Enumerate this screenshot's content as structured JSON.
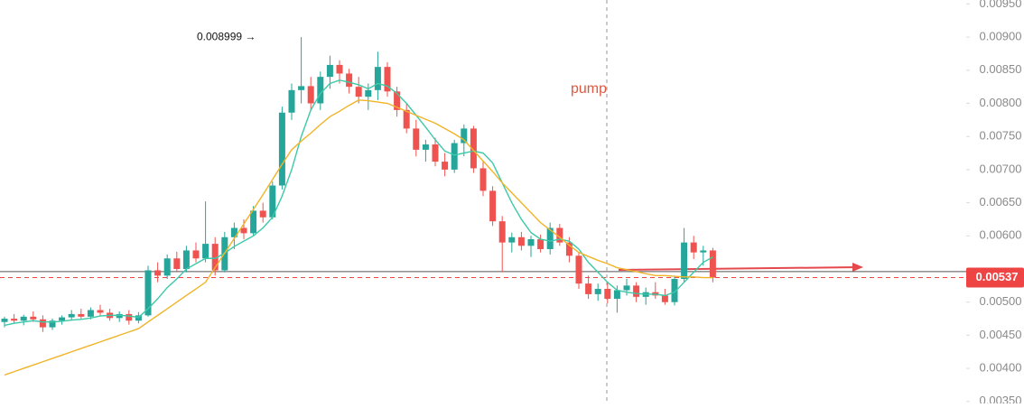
{
  "chart_data": {
    "type": "candlestick",
    "ylim": [
      0.00347,
      0.00956
    ],
    "yticks": [
      {
        "value": 0.0095,
        "label": "0.00950"
      },
      {
        "value": 0.009,
        "label": "0.00900"
      },
      {
        "value": 0.0085,
        "label": "0.00850"
      },
      {
        "value": 0.008,
        "label": "0.00800"
      },
      {
        "value": 0.0075,
        "label": "0.00750"
      },
      {
        "value": 0.007,
        "label": "0.00700"
      },
      {
        "value": 0.0065,
        "label": "0.00650"
      },
      {
        "value": 0.006,
        "label": "0.00600"
      },
      {
        "value": 0.005,
        "label": "0.00500"
      },
      {
        "value": 0.0045,
        "label": "0.00450"
      },
      {
        "value": 0.004,
        "label": "0.00400"
      },
      {
        "value": 0.0035,
        "label": "0.00350"
      }
    ],
    "up_color": "#26a69a",
    "down_color": "#ef5350",
    "open": [
      0.0047,
      0.00475,
      0.00472,
      0.00478,
      0.00474,
      0.00462,
      0.00472,
      0.00477,
      0.00482,
      0.00478,
      0.00488,
      0.00484,
      0.00476,
      0.00482,
      0.00472,
      0.0048,
      0.00548,
      0.0054,
      0.00566,
      0.0055,
      0.00578,
      0.00566,
      0.00588,
      0.00548,
      0.00598,
      0.00612,
      0.00604,
      0.00638,
      0.00628,
      0.00676,
      0.00786,
      0.0082,
      0.00826,
      0.008,
      0.0084,
      0.00858,
      0.00845,
      0.00825,
      0.0081,
      0.0082,
      0.00855,
      0.00818,
      0.0079,
      0.00762,
      0.0073,
      0.00738,
      0.00712,
      0.007,
      0.0074,
      0.00762,
      0.00702,
      0.00668,
      0.00622,
      0.0059,
      0.00598,
      0.00585,
      0.00595,
      0.0058,
      0.00612,
      0.0059,
      0.0057,
      0.00528,
      0.00512,
      0.0052,
      0.00505,
      0.00518,
      0.00525,
      0.00508,
      0.00515,
      0.0051,
      0.005,
      0.00535,
      0.0059,
      0.00575,
      0.00578
    ],
    "high": [
      0.00478,
      0.00482,
      0.00481,
      0.00486,
      0.0048,
      0.00475,
      0.0048,
      0.00488,
      0.0049,
      0.00492,
      0.00496,
      0.0049,
      0.00486,
      0.00488,
      0.00485,
      0.00555,
      0.0056,
      0.00572,
      0.00576,
      0.00585,
      0.0059,
      0.00652,
      0.00598,
      0.00606,
      0.0062,
      0.00625,
      0.00645,
      0.0065,
      0.00682,
      0.00795,
      0.0083,
      0.008999,
      0.0084,
      0.00848,
      0.00872,
      0.00865,
      0.00852,
      0.0084,
      0.0083,
      0.00878,
      0.00862,
      0.00825,
      0.008,
      0.00775,
      0.00745,
      0.00748,
      0.00725,
      0.00745,
      0.00768,
      0.00766,
      0.00712,
      0.00675,
      0.0063,
      0.00605,
      0.00606,
      0.006,
      0.00602,
      0.0062,
      0.00618,
      0.00598,
      0.00575,
      0.0054,
      0.00528,
      0.0053,
      0.00525,
      0.00535,
      0.0053,
      0.00522,
      0.0053,
      0.0052,
      0.0054,
      0.00612,
      0.006,
      0.00585,
      0.00582
    ],
    "low": [
      0.00462,
      0.00468,
      0.00465,
      0.0047,
      0.00455,
      0.00458,
      0.00466,
      0.00472,
      0.00475,
      0.00474,
      0.0048,
      0.00472,
      0.0047,
      0.00466,
      0.00468,
      0.00478,
      0.0053,
      0.00535,
      0.00545,
      0.00545,
      0.0056,
      0.0056,
      0.0054,
      0.00545,
      0.0058,
      0.00595,
      0.006,
      0.0062,
      0.00625,
      0.0067,
      0.00775,
      0.008,
      0.0079,
      0.0079,
      0.00822,
      0.0083,
      0.00815,
      0.008,
      0.0079,
      0.00805,
      0.0081,
      0.0078,
      0.00755,
      0.0072,
      0.00712,
      0.00705,
      0.0069,
      0.00695,
      0.0072,
      0.00695,
      0.0066,
      0.00615,
      0.00545,
      0.00575,
      0.00578,
      0.00568,
      0.00575,
      0.00572,
      0.00585,
      0.0056,
      0.0052,
      0.00505,
      0.00502,
      0.00498,
      0.00484,
      0.0051,
      0.005,
      0.00496,
      0.00505,
      0.00496,
      0.00495,
      0.0053,
      0.00565,
      0.00555,
      0.0053
    ],
    "close": [
      0.00475,
      0.00472,
      0.00478,
      0.00474,
      0.00462,
      0.00472,
      0.00477,
      0.00482,
      0.00478,
      0.00488,
      0.00484,
      0.00476,
      0.00482,
      0.00472,
      0.0048,
      0.00548,
      0.0054,
      0.00566,
      0.0055,
      0.00578,
      0.00566,
      0.00588,
      0.00548,
      0.00598,
      0.00612,
      0.00604,
      0.00638,
      0.00628,
      0.00676,
      0.00786,
      0.0082,
      0.00826,
      0.008,
      0.0084,
      0.00858,
      0.00845,
      0.00825,
      0.0081,
      0.0082,
      0.00855,
      0.00818,
      0.0079,
      0.00762,
      0.0073,
      0.00738,
      0.00712,
      0.007,
      0.0074,
      0.00762,
      0.00702,
      0.00668,
      0.00622,
      0.0059,
      0.00598,
      0.00585,
      0.00595,
      0.0058,
      0.00612,
      0.0059,
      0.0057,
      0.00528,
      0.00512,
      0.0052,
      0.00505,
      0.00518,
      0.00525,
      0.00508,
      0.00515,
      0.0051,
      0.005,
      0.00535,
      0.0059,
      0.00575,
      0.00578,
      0.00537
    ],
    "lines": [
      {
        "color": "#3cc9a8",
        "values": [
          0.00465,
          0.00468,
          0.0047,
          0.00472,
          0.0047,
          0.0047,
          0.00471,
          0.00473,
          0.00474,
          0.00476,
          0.00479,
          0.0048,
          0.0048,
          0.00479,
          0.00477,
          0.0049,
          0.00505,
          0.00522,
          0.00535,
          0.0055,
          0.00558,
          0.00566,
          0.00566,
          0.00574,
          0.00584,
          0.00592,
          0.006,
          0.00612,
          0.00628,
          0.0066,
          0.007,
          0.0075,
          0.0079,
          0.00815,
          0.0083,
          0.00835,
          0.00832,
          0.00828,
          0.00822,
          0.0083,
          0.00826,
          0.00815,
          0.008,
          0.00782,
          0.00764,
          0.00745,
          0.00728,
          0.00722,
          0.00725,
          0.00728,
          0.00725,
          0.0071,
          0.0068,
          0.0065,
          0.00625,
          0.00605,
          0.00595,
          0.00592,
          0.00595,
          0.00592,
          0.0058,
          0.0056,
          0.00545,
          0.0053,
          0.00518,
          0.00515,
          0.00513,
          0.00512,
          0.00512,
          0.0051,
          0.00515,
          0.0053,
          0.00545,
          0.0056,
          0.00568
        ]
      },
      {
        "color": "#f0b429",
        "values": [
          0.0039,
          0.00395,
          0.004,
          0.00405,
          0.0041,
          0.00415,
          0.0042,
          0.00425,
          0.0043,
          0.00435,
          0.0044,
          0.00445,
          0.0045,
          0.00455,
          0.0046,
          0.0047,
          0.0048,
          0.0049,
          0.005,
          0.0051,
          0.0052,
          0.0053,
          0.00552,
          0.00574,
          0.00596,
          0.00618,
          0.0064,
          0.00662,
          0.00685,
          0.00708,
          0.0073,
          0.00743,
          0.00755,
          0.00768,
          0.0078,
          0.00788,
          0.00797,
          0.00805,
          0.00804,
          0.00802,
          0.008,
          0.00794,
          0.00788,
          0.00782,
          0.00776,
          0.0077,
          0.00762,
          0.00754,
          0.00745,
          0.00729,
          0.00713,
          0.00697,
          0.0068,
          0.00665,
          0.0065,
          0.00635,
          0.0062,
          0.00609,
          0.00598,
          0.00586,
          0.00575,
          0.00569,
          0.00563,
          0.00558,
          0.00552,
          0.00549,
          0.00546,
          0.00543,
          0.0054,
          0.0054,
          0.00539,
          0.00538,
          0.00538,
          0.00537,
          0.00537
        ]
      }
    ],
    "hline": {
      "value": 0.00546,
      "color": "#555555"
    },
    "last_price": {
      "value": 0.00537,
      "label": "0.00537",
      "color": "#ef4444"
    },
    "annotations": [
      {
        "text": "pump",
        "color": "#e0593f"
      },
      {
        "text": "0.008999 →",
        "value": 0.008999
      }
    ]
  }
}
